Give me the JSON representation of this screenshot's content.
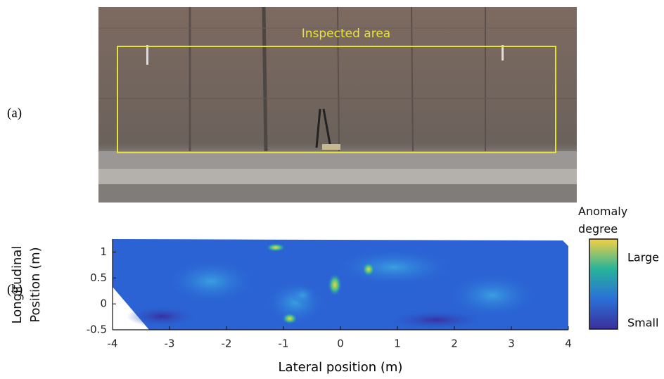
{
  "panels": {
    "a": {
      "label": "(a)",
      "annotation": "Inspected area"
    },
    "b": {
      "label": "(b)"
    }
  },
  "chart_data": {
    "type": "heatmap",
    "x_label": "Lateral position (m)",
    "y_label": "Longitudinal Position (m)",
    "xlim": [
      -4,
      4
    ],
    "xticks": [
      -4,
      -3,
      -2,
      -1,
      0,
      1,
      2,
      3,
      4
    ],
    "ylim": [
      -0.5,
      1.25
    ],
    "yticks": [
      -0.5,
      0,
      0.5,
      1
    ],
    "colorbar": {
      "title": "Anomaly degree",
      "max_label": "Large",
      "min_label": "Small",
      "colors": [
        "#f5d142",
        "#27b39a",
        "#2b6fd8",
        "#3a2f9a"
      ]
    }
  }
}
